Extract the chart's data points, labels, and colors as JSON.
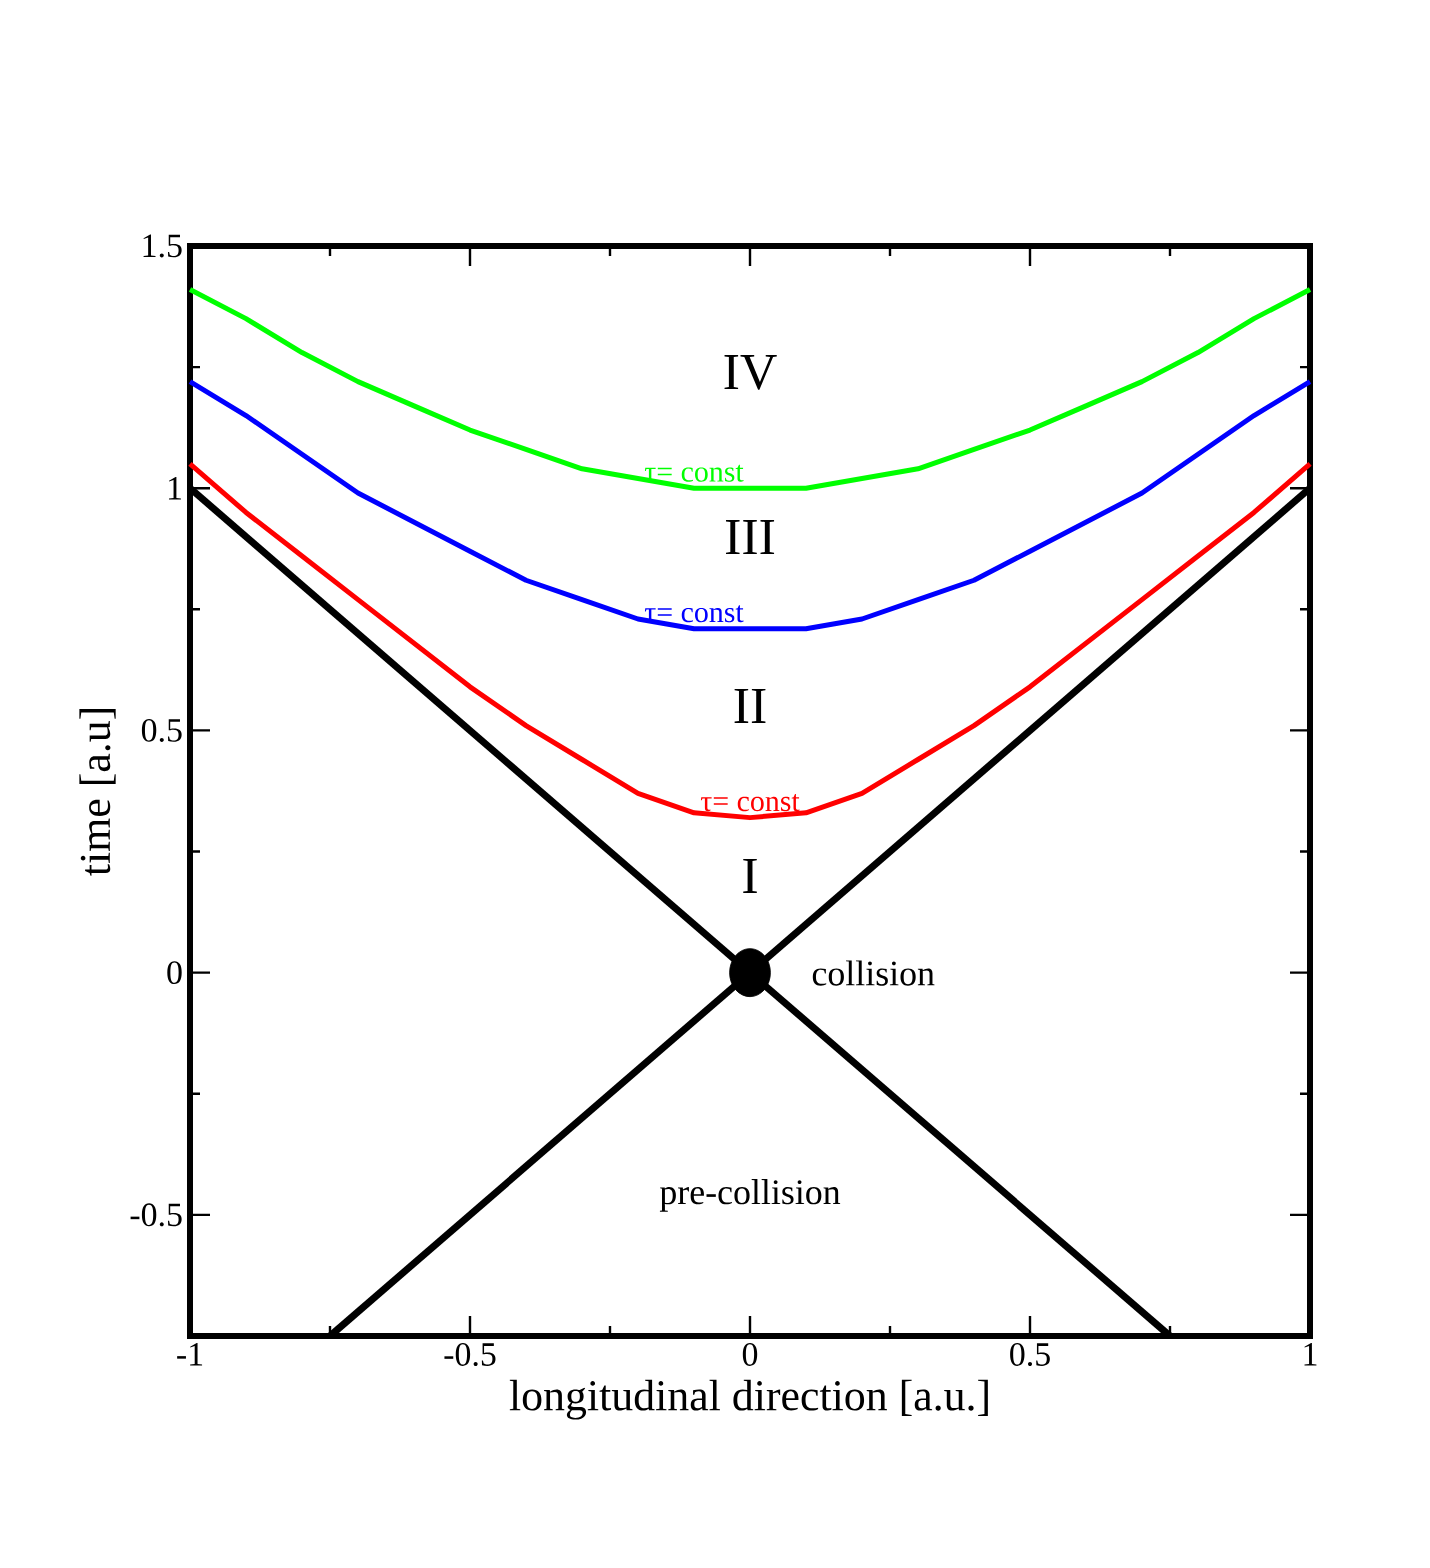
{
  "chart_data": {
    "type": "line",
    "xlabel": "longitudinal direction [a.u.]",
    "ylabel": "time [a.u]",
    "xlim": [
      -1,
      1
    ],
    "ylim": [
      -0.75,
      1.5
    ],
    "xticks": [
      -1,
      -0.5,
      0,
      0.5,
      1
    ],
    "yticks": [
      -0.5,
      0,
      0.5,
      1,
      1.5
    ],
    "grid": false,
    "series": [
      {
        "color": "#000000",
        "x": [
          -1,
          0.75
        ],
        "values": [
          1,
          -0.75
        ]
      },
      {
        "color": "#000000",
        "x": [
          -0.75,
          1
        ],
        "values": [
          -0.75,
          1
        ]
      },
      {
        "name": "τ= const",
        "color": "#ff0000",
        "x": [
          -1,
          -0.9,
          -0.8,
          -0.7,
          -0.6,
          -0.5,
          -0.4,
          -0.3,
          -0.2,
          -0.1,
          0,
          0.1,
          0.2,
          0.3,
          0.4,
          0.5,
          0.6,
          0.7,
          0.8,
          0.9,
          1
        ],
        "values": [
          1.05,
          0.95,
          0.86,
          0.77,
          0.68,
          0.59,
          0.51,
          0.44,
          0.37,
          0.33,
          0.32,
          0.33,
          0.37,
          0.44,
          0.51,
          0.59,
          0.68,
          0.77,
          0.86,
          0.95,
          1.05
        ]
      },
      {
        "name": "τ= const",
        "color": "#0000ff",
        "x": [
          -1,
          -0.9,
          -0.8,
          -0.7,
          -0.6,
          -0.5,
          -0.4,
          -0.3,
          -0.2,
          -0.1,
          0,
          0.1,
          0.2,
          0.3,
          0.4,
          0.5,
          0.6,
          0.7,
          0.8,
          0.9,
          1
        ],
        "values": [
          1.22,
          1.15,
          1.07,
          0.99,
          0.93,
          0.87,
          0.81,
          0.77,
          0.73,
          0.71,
          0.71,
          0.71,
          0.73,
          0.77,
          0.81,
          0.87,
          0.93,
          0.99,
          1.07,
          1.15,
          1.22
        ]
      },
      {
        "name": "τ= const",
        "color": "#00ff00",
        "x": [
          -1,
          -0.9,
          -0.8,
          -0.7,
          -0.6,
          -0.5,
          -0.4,
          -0.3,
          -0.2,
          -0.1,
          0,
          0.1,
          0.2,
          0.3,
          0.4,
          0.5,
          0.6,
          0.7,
          0.8,
          0.9,
          1
        ],
        "values": [
          1.41,
          1.35,
          1.28,
          1.22,
          1.17,
          1.12,
          1.08,
          1.04,
          1.02,
          1.0,
          1.0,
          1.0,
          1.02,
          1.04,
          1.08,
          1.12,
          1.17,
          1.22,
          1.28,
          1.35,
          1.41
        ]
      },
      {
        "type": "scatter",
        "color": "#000000",
        "x": [
          0
        ],
        "values": [
          0
        ]
      }
    ],
    "annotations": [
      "IV",
      "III",
      "II",
      "I",
      "collision",
      "pre-collision"
    ]
  }
}
